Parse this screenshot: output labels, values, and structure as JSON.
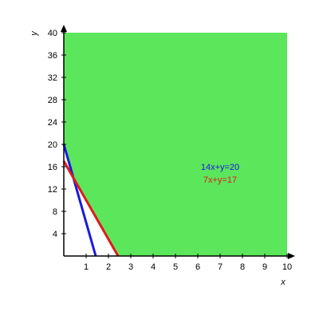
{
  "chart_data": {
    "type": "line",
    "xlabel": "x",
    "ylabel": "y",
    "xlim": [
      0,
      10
    ],
    "ylim": [
      0,
      40
    ],
    "xticks": [
      1,
      2,
      3,
      4,
      5,
      6,
      7,
      8,
      9,
      10
    ],
    "yticks": [
      4,
      8,
      12,
      16,
      20,
      24,
      28,
      32,
      36,
      40
    ],
    "region_color": "#5ce65c",
    "series": [
      {
        "name": "14x+y=20",
        "color": "#1a1adc",
        "x": [
          0,
          1.43
        ],
        "values": [
          20,
          0
        ]
      },
      {
        "name": "7x+y=17",
        "color": "#e01a1a",
        "x": [
          0,
          2.43
        ],
        "values": [
          17,
          0
        ]
      }
    ]
  }
}
